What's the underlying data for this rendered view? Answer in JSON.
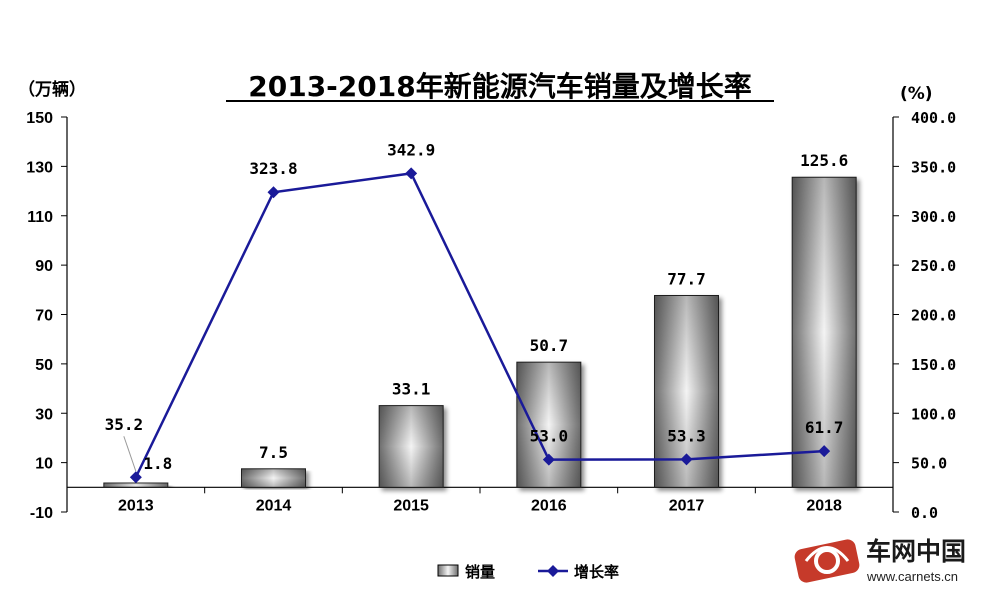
{
  "chart_data": {
    "type": "bar",
    "title": "2013-2018年新能源汽车销量及增长率",
    "ylabel_left": "（万辆）",
    "ylabel_right": "(%)",
    "categories": [
      "2013",
      "2014",
      "2015",
      "2016",
      "2017",
      "2018"
    ],
    "y_left_range": [
      -10,
      150
    ],
    "y_left_ticks": [
      "150",
      "130",
      "110",
      "90",
      "70",
      "50",
      "30",
      "10",
      "-10"
    ],
    "y_right_range": [
      0,
      400
    ],
    "y_right_ticks": [
      "400.0",
      "350.0",
      "300.0",
      "250.0",
      "200.0",
      "150.0",
      "100.0",
      "50.0",
      "0.0"
    ],
    "grid": false,
    "legend_position": "bottom",
    "series": [
      {
        "name": "销量",
        "type": "bar",
        "axis": "left",
        "values": [
          1.8,
          7.5,
          33.1,
          50.7,
          77.7,
          125.6
        ],
        "labels": [
          "1.8",
          "7.5",
          "33.1",
          "50.7",
          "77.7",
          "125.6"
        ]
      },
      {
        "name": "增长率",
        "type": "line",
        "axis": "right",
        "color": "#1a1a99",
        "values": [
          35.2,
          323.8,
          342.9,
          53.0,
          53.3,
          61.7
        ],
        "labels": [
          "35.2",
          "323.8",
          "342.9",
          "53.0",
          "53.3",
          "61.7"
        ]
      }
    ]
  },
  "watermark": {
    "name": "车网中国",
    "url": "www.carnets.cn"
  }
}
